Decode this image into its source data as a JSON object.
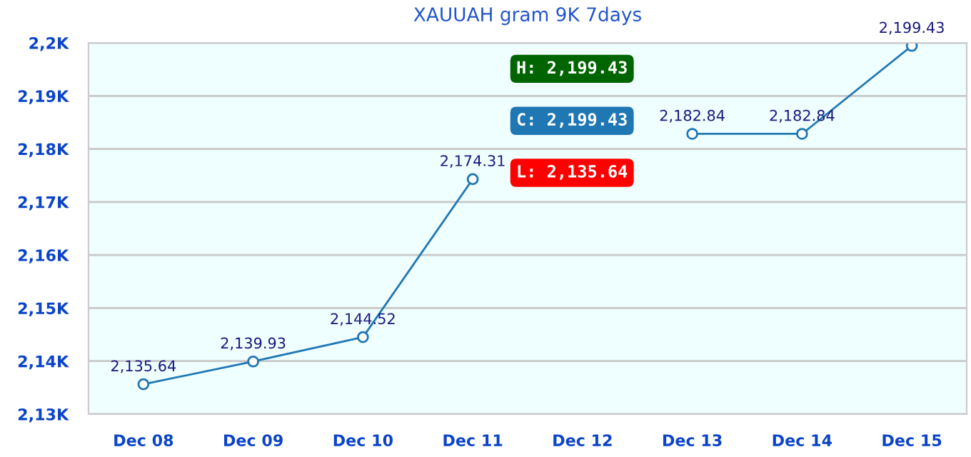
{
  "chart_data": {
    "type": "line",
    "title": "XAUUAH gram 9K 7days",
    "categories": [
      "Dec 08",
      "Dec 09",
      "Dec 10",
      "Dec 11",
      "Dec 12",
      "Dec 13",
      "Dec 14",
      "Dec 15"
    ],
    "series": [
      {
        "color": "#1f77b4",
        "values": [
          2135.64,
          2139.93,
          2144.52,
          2174.31,
          null,
          2182.84,
          2182.84,
          2199.43
        ],
        "value_labels": [
          "2,135.64",
          "2,139.93",
          "2,144.52",
          "2,174.31",
          null,
          "2,182.84",
          "2,182.84",
          "2,199.43"
        ]
      }
    ],
    "ylim": [
      2130,
      2200
    ],
    "yticks": [
      {
        "value": 2130,
        "label": "2,13K"
      },
      {
        "value": 2140,
        "label": "2,14K"
      },
      {
        "value": 2150,
        "label": "2,15K"
      },
      {
        "value": 2160,
        "label": "2,16K"
      },
      {
        "value": 2170,
        "label": "2,17K"
      },
      {
        "value": 2180,
        "label": "2,18K"
      },
      {
        "value": 2190,
        "label": "2,19K"
      },
      {
        "value": 2200,
        "label": "2,2K"
      }
    ],
    "grid": "y",
    "marker": "circle",
    "line_style": "solid",
    "annotations": [
      "H: 2,199.43",
      "C: 2,199.43",
      "L: 2,135.64"
    ]
  }
}
